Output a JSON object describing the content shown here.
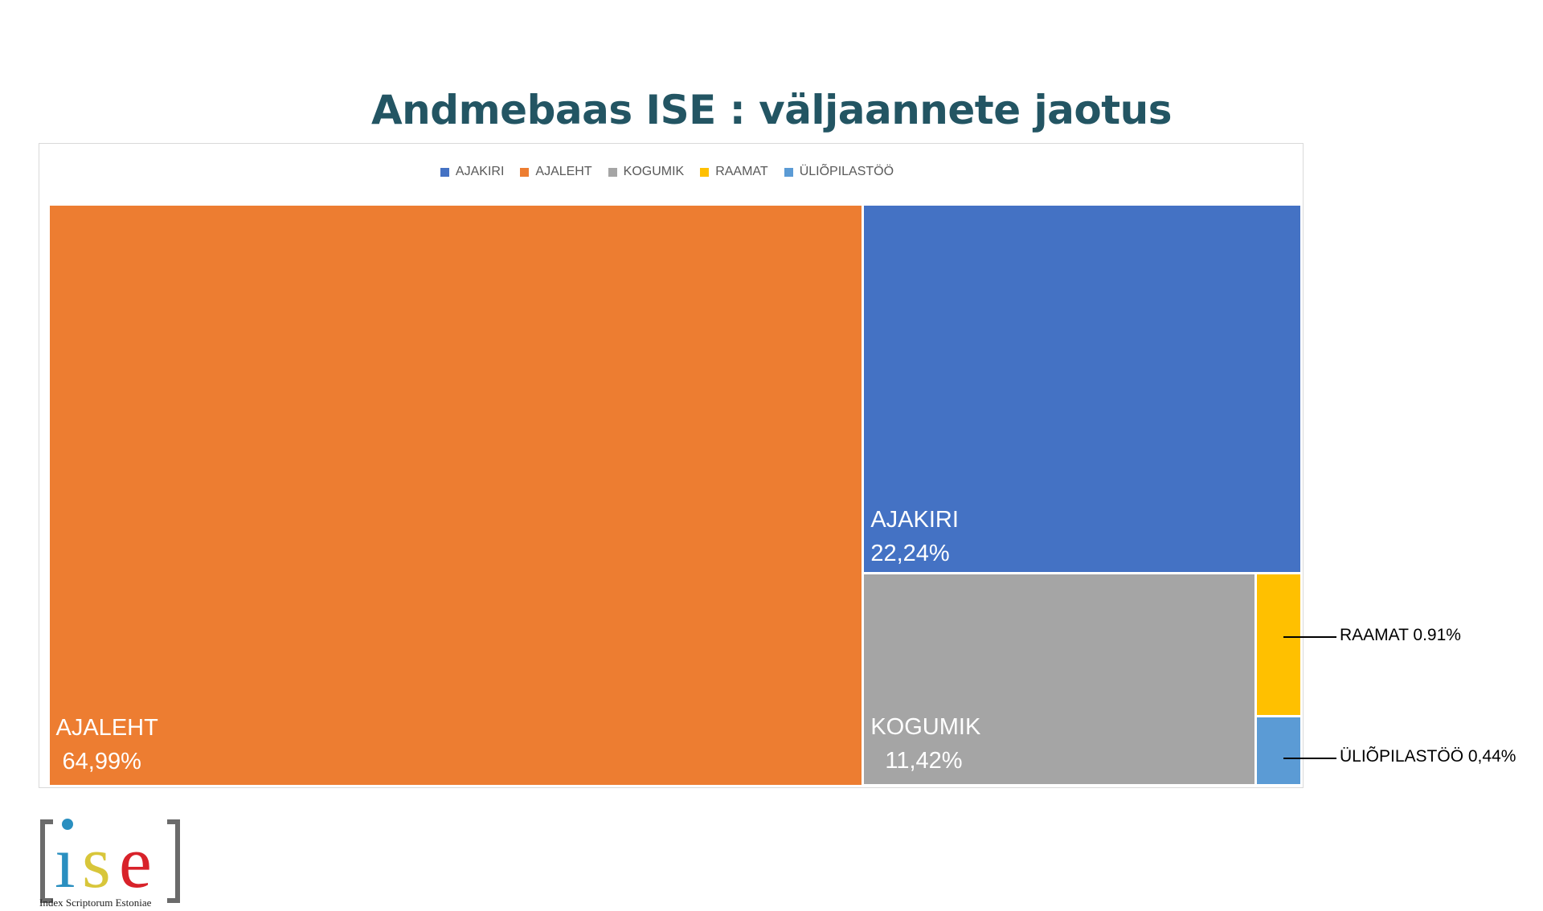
{
  "chart_data": {
    "type": "treemap",
    "title": "Andmebaas ISE : väljaannete jaotus",
    "legend": {
      "position": "top",
      "entries": [
        "AJAKIRI",
        "AJALEHT",
        "KOGUMIK",
        "RAAMAT",
        "ÜLIÕPILASTÖÖ"
      ]
    },
    "series": [
      {
        "name": "AJAKIRI",
        "value": 22.24,
        "label": "22,24%",
        "color": "#4472c4"
      },
      {
        "name": "AJALEHT",
        "value": 64.99,
        "label": "64,99%",
        "color": "#ed7d31"
      },
      {
        "name": "KOGUMIK",
        "value": 11.42,
        "label": "11,42%",
        "color": "#a5a5a5"
      },
      {
        "name": "RAAMAT",
        "value": 0.91,
        "label": "0.91%",
        "color": "#ffc000"
      },
      {
        "name": "ÜLIÕPILASTÖÖ",
        "value": 0.44,
        "label": "0,44%",
        "color": "#5b9bd5"
      }
    ],
    "callouts": {
      "raamat": "RAAMAT 0.91%",
      "uliopilastoo": "ÜLIÕPILASTÖÖ 0,44%"
    }
  },
  "logo": {
    "text": "ise",
    "caption": "Index Scriptorum Estoniae",
    "colors": {
      "i": "#2a8fc0",
      "s": "#d8c63a",
      "e": "#d8222a",
      "bracket": "#6b6b6b"
    }
  }
}
